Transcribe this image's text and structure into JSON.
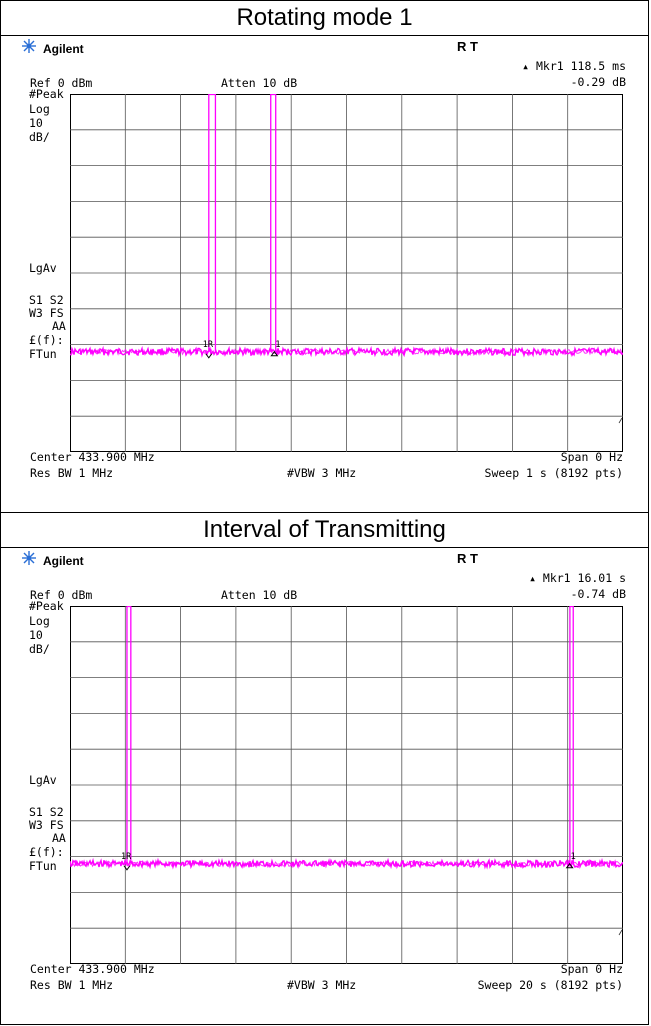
{
  "panels": [
    {
      "title": "Rotating mode 1",
      "brand": "Agilent",
      "status_rt": "R  T",
      "marker_label": "▴ Mkr1  118.5 ms",
      "marker_value": "-0.29 dB",
      "ref": "Ref 0 dBm",
      "atten": "Atten 10 dB",
      "side": {
        "peak": "#Peak",
        "log": "Log",
        "div_num": "10",
        "div_unit": "dB/",
        "lgav": "LgAv",
        "s1s2": "S1  S2",
        "w3fs": "W3  FS",
        "aa": "AA",
        "ef": "£(f):",
        "ftun": "FTun"
      },
      "center": "Center 433.900 MHz",
      "span": "Span 0 Hz",
      "rbw": "Res BW 1 MHz",
      "vbw": "#VBW 3 MHz",
      "sweep": "Sweep 1 s (8192 pts)",
      "marker1_tag": "1R",
      "marker2_tag": "1"
    },
    {
      "title": "Interval of Transmitting",
      "brand": "Agilent",
      "status_rt": "R  T",
      "marker_label": "▴ Mkr1  16.01 s",
      "marker_value": "-0.74 dB",
      "ref": "Ref 0 dBm",
      "atten": "Atten 10 dB",
      "side": {
        "peak": "#Peak",
        "log": "Log",
        "div_num": "10",
        "div_unit": "dB/",
        "lgav": "LgAv",
        "s1s2": "S1  S2",
        "w3fs": "W3  FS",
        "aa": "AA",
        "ef": "£(f):",
        "ftun": "FTun"
      },
      "center": "Center 433.900 MHz",
      "span": "Span 0 Hz",
      "rbw": "Res BW 1 MHz",
      "vbw": "#VBW 3 MHz",
      "sweep": "Sweep 20 s (8192 pts)",
      "marker1_tag": "1R",
      "marker2_tag": "1"
    }
  ],
  "chart_data": [
    {
      "type": "line",
      "title": "Rotating mode 1",
      "xlim": [
        0,
        1
      ],
      "x_unit": "s",
      "ylim": [
        -100,
        0
      ],
      "y_unit": "dBm",
      "grid": true,
      "grid_divisions": {
        "x": 10,
        "y": 10
      },
      "noise_floor_dbm": -72,
      "pulses": [
        {
          "start": 0.251,
          "end": 0.263,
          "level": 0
        },
        {
          "start": 0.363,
          "end": 0.372,
          "level": 0
        }
      ],
      "marker_delta": {
        "x": 0.1185,
        "value_db": -0.29
      },
      "trace_color": "#ff00ff"
    },
    {
      "type": "line",
      "title": "Interval of Transmitting",
      "xlim": [
        0,
        20
      ],
      "x_unit": "s",
      "ylim": [
        -100,
        0
      ],
      "y_unit": "dBm",
      "grid": true,
      "grid_divisions": {
        "x": 10,
        "y": 10
      },
      "noise_floor_dbm": -72,
      "pulses": [
        {
          "start": 2.06,
          "end": 2.2,
          "level": 0
        },
        {
          "start": 18.08,
          "end": 18.2,
          "level": 0
        }
      ],
      "marker_delta": {
        "x": 16.01,
        "value_db": -0.74
      },
      "trace_color": "#ff00ff"
    }
  ]
}
